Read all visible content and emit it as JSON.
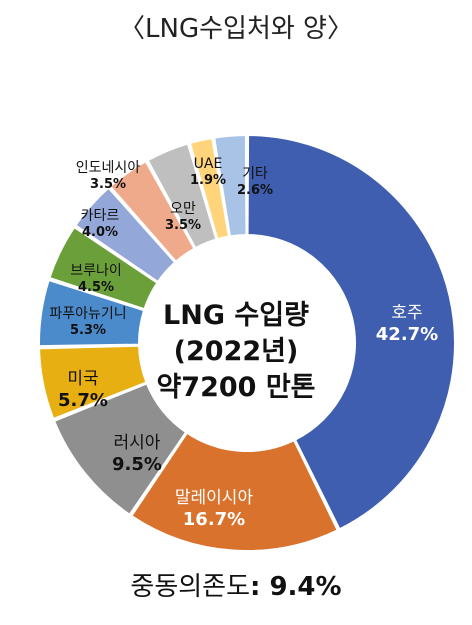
{
  "title": "〈LNG수입처와 양〉",
  "center": {
    "line1": "LNG 수입량",
    "line2": "(2022년)",
    "line3": "약7200 만톤"
  },
  "footer": {
    "label": "중동의존도",
    "value": ": 9.4%"
  },
  "chart_data": {
    "type": "pie",
    "title": "〈LNG수입처와 양〉",
    "categories": [
      "호주",
      "말레이시아",
      "러시아",
      "미국",
      "파푸아뉴기니",
      "브루나이",
      "카타르",
      "인도네시아",
      "오만",
      "UAE",
      "기타"
    ],
    "values": [
      42.7,
      16.7,
      9.5,
      5.7,
      5.3,
      4.5,
      4.0,
      3.5,
      3.5,
      1.9,
      2.6
    ],
    "labels": [
      "42.7%",
      "16.7%",
      "9.5%",
      "5.7%",
      "5.3%",
      "4.5%",
      "4.0%",
      "3.5%",
      "3.5%",
      "1.9%",
      "2.6%"
    ],
    "colors": [
      "#3F5EAF",
      "#D8722C",
      "#8F8F8F",
      "#E8AF12",
      "#4C8BCB",
      "#6A9F3A",
      "#93A8D8",
      "#EFA98B",
      "#BFBFBF",
      "#FFD47A",
      "#A8C3E6"
    ],
    "donut": true,
    "start_angle_deg": 0,
    "direction": "clockwise"
  }
}
